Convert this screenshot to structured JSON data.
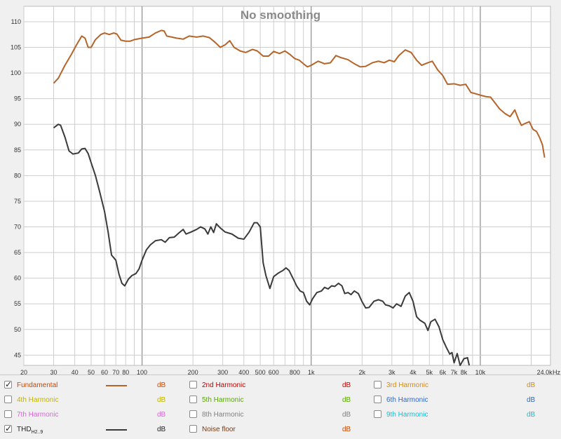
{
  "chart_data": {
    "type": "line",
    "title": "No smoothing",
    "xscale": "log",
    "xlim": [
      20,
      26000
    ],
    "ylim": [
      43,
      113
    ],
    "x_unit": "Hz",
    "x_ticks": [
      {
        "v": 20,
        "label": "20"
      },
      {
        "v": 30,
        "label": "30"
      },
      {
        "v": 40,
        "label": "40"
      },
      {
        "v": 50,
        "label": "50"
      },
      {
        "v": 60,
        "label": "60"
      },
      {
        "v": 70,
        "label": "70"
      },
      {
        "v": 80,
        "label": "80"
      },
      {
        "v": 100,
        "label": "100"
      },
      {
        "v": 200,
        "label": "200"
      },
      {
        "v": 300,
        "label": "300"
      },
      {
        "v": 400,
        "label": "400"
      },
      {
        "v": 500,
        "label": "500"
      },
      {
        "v": 600,
        "label": "600"
      },
      {
        "v": 800,
        "label": "800"
      },
      {
        "v": 1000,
        "label": "1k"
      },
      {
        "v": 2000,
        "label": "2k"
      },
      {
        "v": 3000,
        "label": "3k"
      },
      {
        "v": 4000,
        "label": "4k"
      },
      {
        "v": 5000,
        "label": "5k"
      },
      {
        "v": 6000,
        "label": "6k"
      },
      {
        "v": 7000,
        "label": "7k"
      },
      {
        "v": 8000,
        "label": "8k"
      },
      {
        "v": 10000,
        "label": "10k"
      },
      {
        "v": 24000,
        "label": "24,0k"
      }
    ],
    "y_ticks": [
      45,
      50,
      55,
      60,
      65,
      70,
      75,
      80,
      85,
      90,
      95,
      100,
      105,
      110
    ],
    "series": [
      {
        "name": "Fundamental",
        "color": "#b5652a",
        "points": [
          [
            30,
            98.0
          ],
          [
            32,
            99.0
          ],
          [
            35,
            101.5
          ],
          [
            38,
            103.5
          ],
          [
            41,
            105.5
          ],
          [
            44,
            107.2
          ],
          [
            46,
            106.8
          ],
          [
            48,
            105.0
          ],
          [
            50,
            105.0
          ],
          [
            53,
            106.5
          ],
          [
            57,
            107.5
          ],
          [
            60,
            107.8
          ],
          [
            64,
            107.5
          ],
          [
            68,
            107.8
          ],
          [
            71,
            107.6
          ],
          [
            75,
            106.4
          ],
          [
            80,
            106.2
          ],
          [
            85,
            106.2
          ],
          [
            90,
            106.5
          ],
          [
            100,
            106.8
          ],
          [
            110,
            107.0
          ],
          [
            120,
            107.8
          ],
          [
            130,
            108.3
          ],
          [
            135,
            108.2
          ],
          [
            140,
            107.2
          ],
          [
            150,
            107.0
          ],
          [
            160,
            106.8
          ],
          [
            175,
            106.6
          ],
          [
            190,
            107.2
          ],
          [
            210,
            107.0
          ],
          [
            230,
            107.2
          ],
          [
            250,
            106.9
          ],
          [
            270,
            106.0
          ],
          [
            290,
            105.0
          ],
          [
            310,
            105.5
          ],
          [
            330,
            106.3
          ],
          [
            350,
            105.0
          ],
          [
            380,
            104.3
          ],
          [
            410,
            104.0
          ],
          [
            450,
            104.6
          ],
          [
            480,
            104.3
          ],
          [
            520,
            103.3
          ],
          [
            560,
            103.3
          ],
          [
            600,
            104.2
          ],
          [
            650,
            103.8
          ],
          [
            700,
            104.3
          ],
          [
            750,
            103.6
          ],
          [
            800,
            102.8
          ],
          [
            850,
            102.5
          ],
          [
            900,
            101.8
          ],
          [
            950,
            101.2
          ],
          [
            1000,
            101.5
          ],
          [
            1100,
            102.3
          ],
          [
            1200,
            101.8
          ],
          [
            1300,
            102.0
          ],
          [
            1400,
            103.4
          ],
          [
            1500,
            103.0
          ],
          [
            1650,
            102.6
          ],
          [
            1800,
            101.8
          ],
          [
            1950,
            101.2
          ],
          [
            2100,
            101.3
          ],
          [
            2300,
            102.0
          ],
          [
            2500,
            102.3
          ],
          [
            2700,
            102.0
          ],
          [
            2900,
            102.5
          ],
          [
            3100,
            102.2
          ],
          [
            3300,
            103.4
          ],
          [
            3600,
            104.5
          ],
          [
            3900,
            104.0
          ],
          [
            4200,
            102.5
          ],
          [
            4500,
            101.5
          ],
          [
            4900,
            102.0
          ],
          [
            5200,
            102.3
          ],
          [
            5600,
            100.6
          ],
          [
            6000,
            99.5
          ],
          [
            6400,
            97.8
          ],
          [
            7000,
            97.9
          ],
          [
            7600,
            97.6
          ],
          [
            8200,
            97.8
          ],
          [
            8800,
            96.2
          ],
          [
            9500,
            95.9
          ],
          [
            10200,
            95.6
          ],
          [
            10800,
            95.4
          ],
          [
            11500,
            95.3
          ],
          [
            12200,
            94.2
          ],
          [
            13000,
            93.0
          ],
          [
            14000,
            92.1
          ],
          [
            15000,
            91.5
          ],
          [
            16000,
            92.8
          ],
          [
            16800,
            91.0
          ],
          [
            17500,
            89.8
          ],
          [
            18500,
            90.2
          ],
          [
            19500,
            90.5
          ],
          [
            20500,
            89.0
          ],
          [
            21500,
            88.6
          ],
          [
            22500,
            87.3
          ],
          [
            23300,
            86.0
          ],
          [
            24000,
            83.5
          ]
        ]
      },
      {
        "name": "THD",
        "color": "#3a3a3a",
        "points": [
          [
            30,
            89.3
          ],
          [
            32,
            90.0
          ],
          [
            33,
            89.8
          ],
          [
            35,
            87.5
          ],
          [
            37,
            84.8
          ],
          [
            39,
            84.2
          ],
          [
            42,
            84.4
          ],
          [
            44,
            85.2
          ],
          [
            46,
            85.3
          ],
          [
            48,
            84.3
          ],
          [
            50,
            82.5
          ],
          [
            53,
            80.0
          ],
          [
            56,
            77.0
          ],
          [
            60,
            73.0
          ],
          [
            63,
            69.0
          ],
          [
            66,
            64.5
          ],
          [
            70,
            63.5
          ],
          [
            73,
            60.8
          ],
          [
            76,
            59.0
          ],
          [
            79,
            58.5
          ],
          [
            83,
            59.8
          ],
          [
            87,
            60.5
          ],
          [
            92,
            60.9
          ],
          [
            96,
            61.8
          ],
          [
            100,
            63.5
          ],
          [
            106,
            65.5
          ],
          [
            112,
            66.5
          ],
          [
            120,
            67.3
          ],
          [
            130,
            67.5
          ],
          [
            137,
            67.0
          ],
          [
            145,
            67.9
          ],
          [
            155,
            68.0
          ],
          [
            165,
            68.8
          ],
          [
            175,
            69.5
          ],
          [
            182,
            68.6
          ],
          [
            195,
            69.0
          ],
          [
            210,
            69.5
          ],
          [
            222,
            70.0
          ],
          [
            235,
            69.6
          ],
          [
            245,
            68.6
          ],
          [
            255,
            70.0
          ],
          [
            265,
            68.9
          ],
          [
            275,
            70.6
          ],
          [
            290,
            69.8
          ],
          [
            310,
            69.0
          ],
          [
            340,
            68.6
          ],
          [
            370,
            67.8
          ],
          [
            400,
            67.6
          ],
          [
            430,
            69.0
          ],
          [
            460,
            70.8
          ],
          [
            480,
            70.8
          ],
          [
            500,
            70.0
          ],
          [
            520,
            63.0
          ],
          [
            540,
            60.5
          ],
          [
            570,
            58.0
          ],
          [
            600,
            60.3
          ],
          [
            640,
            61.0
          ],
          [
            680,
            61.5
          ],
          [
            710,
            62.0
          ],
          [
            740,
            61.5
          ],
          [
            780,
            60.0
          ],
          [
            820,
            58.5
          ],
          [
            860,
            57.5
          ],
          [
            900,
            57.2
          ],
          [
            940,
            55.5
          ],
          [
            980,
            54.8
          ],
          [
            1020,
            56.0
          ],
          [
            1080,
            57.2
          ],
          [
            1150,
            57.5
          ],
          [
            1200,
            58.2
          ],
          [
            1260,
            57.9
          ],
          [
            1320,
            58.5
          ],
          [
            1380,
            58.4
          ],
          [
            1450,
            59.0
          ],
          [
            1520,
            58.5
          ],
          [
            1580,
            57.0
          ],
          [
            1650,
            57.2
          ],
          [
            1720,
            56.8
          ],
          [
            1800,
            57.5
          ],
          [
            1900,
            57.0
          ],
          [
            2000,
            55.4
          ],
          [
            2100,
            54.2
          ],
          [
            2200,
            54.3
          ],
          [
            2350,
            55.5
          ],
          [
            2500,
            55.8
          ],
          [
            2650,
            55.5
          ],
          [
            2750,
            54.8
          ],
          [
            2900,
            54.6
          ],
          [
            3050,
            54.2
          ],
          [
            3200,
            55.0
          ],
          [
            3400,
            54.5
          ],
          [
            3600,
            56.5
          ],
          [
            3800,
            57.2
          ],
          [
            4000,
            55.5
          ],
          [
            4200,
            52.5
          ],
          [
            4400,
            51.8
          ],
          [
            4700,
            51.2
          ],
          [
            4900,
            49.8
          ],
          [
            5100,
            51.5
          ],
          [
            5400,
            52.0
          ],
          [
            5700,
            50.5
          ],
          [
            6000,
            48.0
          ],
          [
            6300,
            46.5
          ],
          [
            6600,
            45.2
          ],
          [
            6800,
            45.5
          ],
          [
            7000,
            43.5
          ],
          [
            7300,
            45.3
          ],
          [
            7600,
            43.0
          ],
          [
            8000,
            44.3
          ],
          [
            8400,
            44.5
          ],
          [
            8600,
            43.0
          ]
        ]
      }
    ]
  },
  "legend": {
    "rows": [
      [
        {
          "label": "Fundamental",
          "checked": true,
          "color": "#c84800",
          "swatch": "#b5652a",
          "unit": "dB",
          "unit_color": "#c84800"
        },
        {
          "label": "2nd Harmonic",
          "checked": false,
          "color": "#c00000",
          "unit": "dB",
          "unit_color": "#c00000"
        },
        {
          "label": "3rd Harmonic",
          "checked": false,
          "color": "#e08a00",
          "unit": "dB",
          "unit_color": "#e08a00"
        }
      ],
      [
        {
          "label": "4th Harmonic",
          "checked": false,
          "color": "#c0b400",
          "unit": "dB",
          "unit_color": "#c0b400"
        },
        {
          "label": "5th Harmonic",
          "checked": false,
          "color": "#58a800",
          "unit": "dB",
          "unit_color": "#58a800"
        },
        {
          "label": "6th Harmonic",
          "checked": false,
          "color": "#3068c8",
          "unit": "dB",
          "unit_color": "#3068c8"
        }
      ],
      [
        {
          "label": "7th Harmonic",
          "checked": false,
          "color": "#e060e0",
          "unit": "dB",
          "unit_color": "#e060e0"
        },
        {
          "label": "8th Harmonic",
          "checked": false,
          "color": "#808080",
          "unit": "dB",
          "unit_color": "#808080"
        },
        {
          "label": "9th Harmonic",
          "checked": false,
          "color": "#10c0d8",
          "unit": "dB",
          "unit_color": "#10c0d8"
        }
      ],
      [
        {
          "label": "THD",
          "sub": "H2..9",
          "checked": true,
          "color": "#222222",
          "swatch": "#3a3a3a",
          "unit": "dB",
          "unit_color": "#222222"
        },
        {
          "label": "Noise floor",
          "checked": false,
          "color": "#7a3a10",
          "unit": "dB",
          "unit_color": "#c84800"
        }
      ]
    ]
  }
}
